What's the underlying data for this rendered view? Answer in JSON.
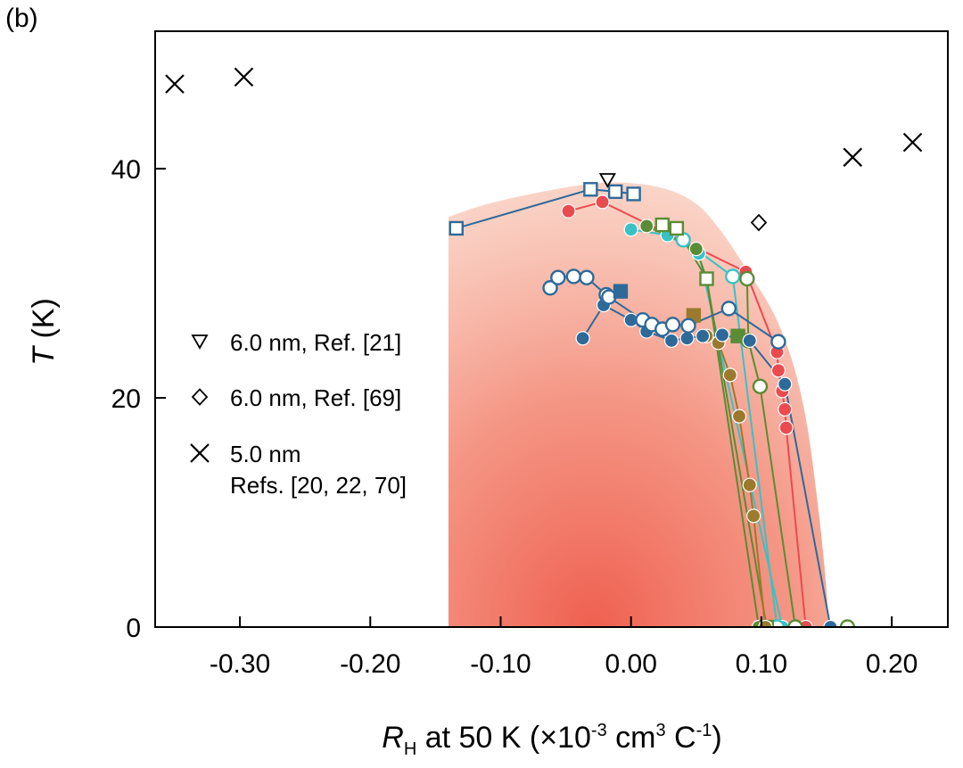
{
  "panel_label": "(b)",
  "colors": {
    "blue": "#2d6a9a",
    "red": "#eb4a4f",
    "green": "#5a8c35",
    "olive": "#9b7a2e",
    "cyan": "#39c2c5",
    "shade": "#ef6a5a",
    "axis": "#000000"
  },
  "chart_data": {
    "type": "scatter",
    "title": "",
    "xlabel": {
      "symbol": "R",
      "subscript": "H",
      "rest": " at 50 K (×10",
      "exp1": "-3",
      "mid": " cm",
      "exp2": "3",
      "mid2": " C",
      "exp3": "-1",
      "end": ")"
    },
    "ylabel": {
      "symbol": "T",
      "rest": " (K)"
    },
    "xlim": [
      -0.365,
      0.243
    ],
    "ylim": [
      0,
      52
    ],
    "xticks": [
      -0.3,
      -0.2,
      -0.1,
      0.0,
      0.1,
      0.2
    ],
    "xtick_labels": [
      "-0.30",
      "-0.20",
      "-0.10",
      "0.00",
      "0.10",
      "0.20"
    ],
    "yticks": [
      0,
      20,
      40
    ],
    "ytick_labels": [
      "0",
      "20",
      "40"
    ],
    "shaded_region": {
      "description": "superconducting dome",
      "boundary": [
        [
          -0.14,
          0
        ],
        [
          -0.14,
          35.8
        ],
        [
          -0.11,
          37.0
        ],
        [
          -0.06,
          38.2
        ],
        [
          -0.02,
          38.9
        ],
        [
          0.02,
          38.6
        ],
        [
          0.05,
          37.2
        ],
        [
          0.07,
          34.5
        ],
        [
          0.09,
          31.0
        ],
        [
          0.11,
          27.5
        ],
        [
          0.125,
          23.0
        ],
        [
          0.135,
          18.0
        ],
        [
          0.142,
          12.0
        ],
        [
          0.148,
          6.0
        ],
        [
          0.152,
          0
        ]
      ]
    },
    "series": [
      {
        "name": "blue open squares",
        "color": "blue",
        "marker": "square",
        "fill": "open",
        "line": true,
        "points": [
          [
            -0.134,
            34.8
          ],
          [
            -0.031,
            38.2
          ],
          [
            -0.012,
            38.0
          ],
          [
            0.002,
            37.8
          ]
        ]
      },
      {
        "name": "red filled circles",
        "color": "red",
        "marker": "circle",
        "fill": "filled",
        "line": true,
        "points": [
          [
            -0.048,
            36.3
          ],
          [
            -0.022,
            37.1
          ],
          [
            0.088,
            31.0
          ],
          [
            0.112,
            24.0
          ],
          [
            0.113,
            22.4
          ],
          [
            0.116,
            20.6
          ],
          [
            0.118,
            19.0
          ],
          [
            0.119,
            17.4
          ],
          [
            0.134,
            0
          ]
        ]
      },
      {
        "name": "cyan filled circles",
        "color": "cyan",
        "marker": "circle",
        "fill": "filled",
        "line": true,
        "points": [
          [
            0.0,
            34.7
          ],
          [
            0.028,
            34.2
          ],
          [
            0.052,
            32.6
          ],
          [
            0.116,
            0
          ]
        ]
      },
      {
        "name": "cyan open circles",
        "color": "cyan",
        "marker": "circle",
        "fill": "open",
        "line": true,
        "points": [
          [
            0.04,
            33.8
          ],
          [
            0.078,
            30.6
          ],
          [
            0.112,
            0
          ]
        ]
      },
      {
        "name": "green filled circles",
        "color": "green",
        "marker": "circle",
        "fill": "filled",
        "line": true,
        "points": [
          [
            0.012,
            35.0
          ],
          [
            0.05,
            33.0
          ],
          [
            0.058,
            30.4
          ],
          [
            0.098,
            0
          ]
        ]
      },
      {
        "name": "green open squares",
        "color": "green",
        "marker": "square",
        "fill": "open",
        "line": true,
        "points": [
          [
            0.024,
            35.1
          ],
          [
            0.035,
            34.8
          ],
          [
            0.058,
            30.4
          ],
          [
            0.104,
            0
          ]
        ]
      },
      {
        "name": "green open circles",
        "color": "green",
        "marker": "circle",
        "fill": "open",
        "line": true,
        "points": [
          [
            0.089,
            30.4
          ],
          [
            0.09,
            25.0
          ],
          [
            0.099,
            21.0
          ],
          [
            0.126,
            0
          ],
          [
            0.166,
            0
          ]
        ]
      },
      {
        "name": "green filled squares",
        "color": "green",
        "marker": "square",
        "fill": "filled",
        "line": false,
        "points": [
          [
            0.082,
            25.4
          ]
        ]
      },
      {
        "name": "olive filled circles",
        "color": "olive",
        "marker": "circle",
        "fill": "filled",
        "line": true,
        "points": [
          [
            0.058,
            25.4
          ],
          [
            0.067,
            24.8
          ],
          [
            0.076,
            22.0
          ],
          [
            0.083,
            18.4
          ],
          [
            0.091,
            12.4
          ],
          [
            0.094,
            9.7
          ],
          [
            0.103,
            0
          ]
        ]
      },
      {
        "name": "olive filled squares",
        "color": "olive",
        "marker": "square",
        "fill": "filled",
        "line": false,
        "points": [
          [
            0.048,
            27.2
          ]
        ]
      },
      {
        "name": "blue filled circles",
        "color": "blue",
        "marker": "circle",
        "fill": "filled",
        "line": true,
        "points": [
          [
            -0.037,
            25.2
          ],
          [
            -0.021,
            28.1
          ],
          [
            0.0,
            26.8
          ],
          [
            0.012,
            25.8
          ],
          [
            0.031,
            25.0
          ],
          [
            0.043,
            25.2
          ],
          [
            0.055,
            25.4
          ],
          [
            0.07,
            25.5
          ],
          [
            0.091,
            25.0
          ],
          [
            0.118,
            21.2
          ],
          [
            0.153,
            0
          ]
        ]
      },
      {
        "name": "blue open circles",
        "color": "blue",
        "marker": "circle",
        "fill": "open",
        "line": true,
        "points": [
          [
            -0.062,
            29.6
          ],
          [
            -0.056,
            30.5
          ],
          [
            -0.044,
            30.6
          ],
          [
            -0.034,
            30.5
          ],
          [
            -0.019,
            29.0
          ],
          [
            -0.017,
            28.8
          ],
          [
            0.009,
            26.8
          ],
          [
            0.016,
            26.4
          ],
          [
            0.024,
            26.0
          ],
          [
            0.032,
            26.4
          ],
          [
            0.044,
            26.3
          ],
          [
            0.075,
            27.8
          ],
          [
            0.113,
            24.9
          ]
        ]
      },
      {
        "name": "blue filled squares",
        "color": "blue",
        "marker": "square",
        "fill": "filled",
        "line": false,
        "points": [
          [
            -0.008,
            29.3
          ]
        ]
      },
      {
        "name": "6.0 nm, Ref. [21]",
        "color": "axis",
        "marker": "triangle-down",
        "fill": "open",
        "line": false,
        "points": [
          [
            -0.018,
            39.0
          ]
        ]
      },
      {
        "name": "6.0 nm, Ref. [69]",
        "color": "axis",
        "marker": "diamond",
        "fill": "open",
        "line": false,
        "points": [
          [
            0.098,
            35.3
          ]
        ]
      },
      {
        "name": "5.0 nm, Refs. [20, 22, 70]",
        "color": "axis",
        "marker": "x",
        "fill": "open",
        "line": false,
        "points": [
          [
            -0.35,
            47.4
          ],
          [
            -0.297,
            48.0
          ],
          [
            0.17,
            41.0
          ],
          [
            0.216,
            42.3
          ]
        ]
      }
    ],
    "legend": {
      "placement": "middle-left",
      "entries": [
        {
          "marker": "triangle-down",
          "lines": [
            "6.0 nm, Ref. [21]"
          ]
        },
        {
          "marker": "diamond",
          "lines": [
            "6.0 nm, Ref. [69]"
          ]
        },
        {
          "marker": "x",
          "lines": [
            "5.0 nm",
            "Refs. [20, 22, 70]"
          ]
        }
      ]
    }
  }
}
